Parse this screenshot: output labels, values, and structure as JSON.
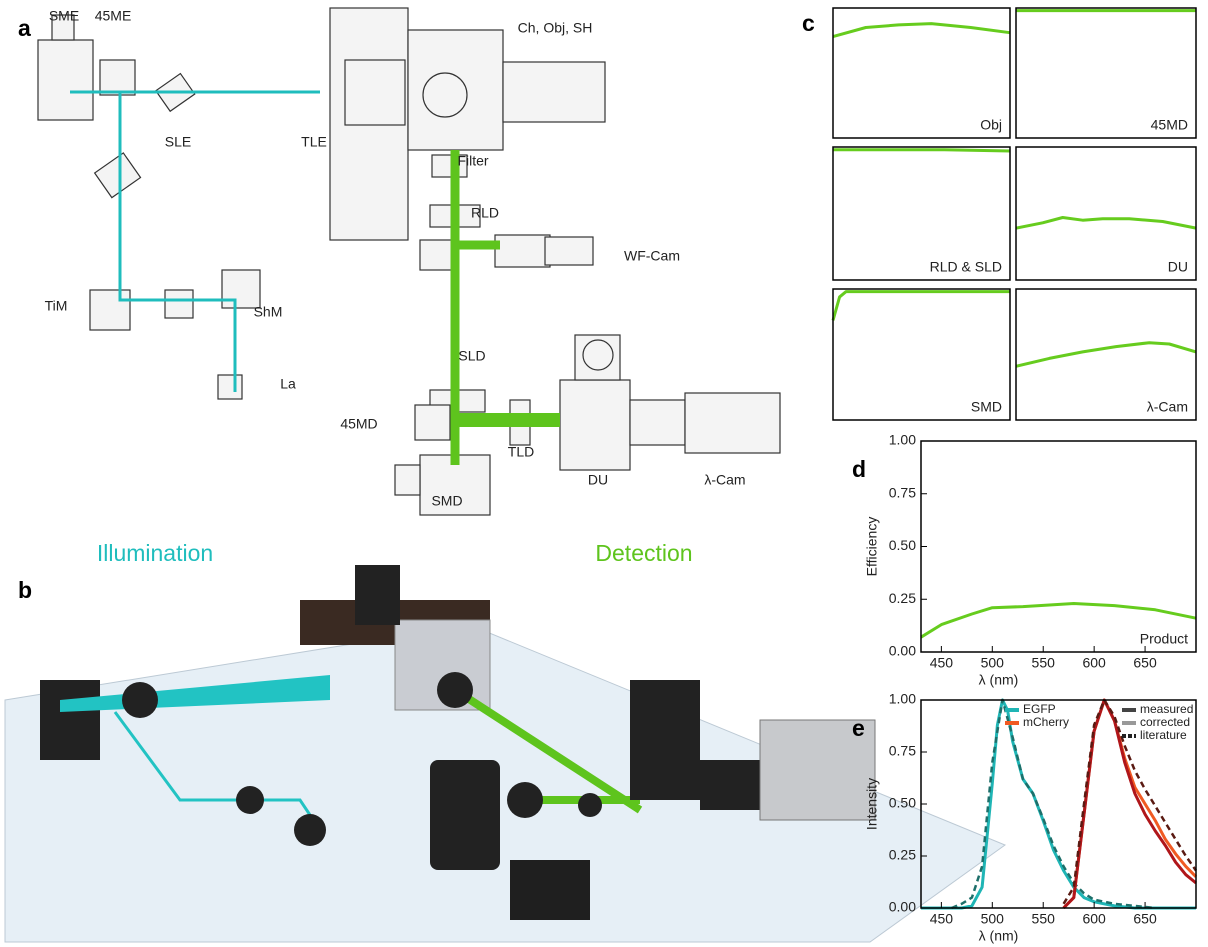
{
  "panel_labels": [
    "a",
    "b",
    "c",
    "d",
    "e"
  ],
  "diagram": {
    "labels": [
      "SME",
      "45ME",
      "SLE",
      "TLE",
      "Ch, Obj, SH",
      "Filter",
      "RLD",
      "WF-Cam",
      "TiM",
      "ShM",
      "La",
      "SLD",
      "45MD",
      "TLD",
      "DU",
      "λ-Cam",
      "SMD"
    ],
    "section_titles": [
      {
        "text": "Illumination",
        "color": "#1fbdbd"
      },
      {
        "text": "Detection",
        "color": "#5ec41d"
      }
    ]
  },
  "chart_data": [
    {
      "type": "line",
      "label": "Obj",
      "color": "#66cc1e",
      "x": [
        430,
        480,
        530,
        580,
        640,
        700
      ],
      "values": [
        0.78,
        0.85,
        0.87,
        0.88,
        0.85,
        0.81
      ],
      "xlim": [
        430,
        700
      ],
      "ylim": [
        0,
        1
      ]
    },
    {
      "type": "line",
      "label": "45MD",
      "color": "#66cc1e",
      "x": [
        430,
        500,
        600,
        700
      ],
      "values": [
        0.98,
        0.98,
        0.98,
        0.98
      ],
      "xlim": [
        430,
        700
      ],
      "ylim": [
        0,
        1
      ]
    },
    {
      "type": "line",
      "label": "RLD & SLD",
      "color": "#66cc1e",
      "x": [
        430,
        500,
        600,
        700
      ],
      "values": [
        0.98,
        0.98,
        0.98,
        0.97
      ],
      "xlim": [
        430,
        700
      ],
      "ylim": [
        0,
        1
      ]
    },
    {
      "type": "line",
      "label": "DU",
      "color": "#66cc1e",
      "x": [
        430,
        470,
        500,
        530,
        560,
        600,
        650,
        700
      ],
      "values": [
        0.39,
        0.43,
        0.47,
        0.45,
        0.46,
        0.46,
        0.44,
        0.39
      ],
      "xlim": [
        430,
        700
      ],
      "ylim": [
        0,
        1
      ]
    },
    {
      "type": "line",
      "label": "SMD",
      "color": "#66cc1e",
      "x": [
        430,
        440,
        450,
        500,
        600,
        700
      ],
      "values": [
        0.76,
        0.94,
        0.98,
        0.98,
        0.98,
        0.98
      ],
      "xlim": [
        430,
        700
      ],
      "ylim": [
        0,
        1
      ]
    },
    {
      "type": "line",
      "label": "λ-Cam",
      "color": "#66cc1e",
      "x": [
        430,
        480,
        530,
        580,
        630,
        660,
        700
      ],
      "values": [
        0.41,
        0.47,
        0.52,
        0.56,
        0.59,
        0.58,
        0.52
      ],
      "xlim": [
        430,
        700
      ],
      "ylim": [
        0,
        1
      ]
    },
    {
      "type": "line",
      "label": "Product",
      "color": "#66cc1e",
      "x": [
        430,
        450,
        480,
        500,
        530,
        580,
        620,
        660,
        700
      ],
      "values": [
        0.07,
        0.13,
        0.18,
        0.21,
        0.215,
        0.23,
        0.22,
        0.2,
        0.16
      ],
      "xlim": [
        430,
        700
      ],
      "ylim": [
        0,
        1
      ],
      "xticks": [
        450,
        500,
        550,
        600,
        650
      ],
      "yticks": [
        {
          "value": 0,
          "label": "0.00"
        },
        0.25,
        {
          "value": 0.5,
          "label": "0.50"
        },
        0.75,
        {
          "value": 1,
          "label": "1.00"
        }
      ],
      "y_label": "Efficiency",
      "x_label": "λ (nm)"
    },
    {
      "type": "line",
      "xlim": [
        430,
        700
      ],
      "ylim": [
        0,
        1
      ],
      "xticks": [
        450,
        500,
        550,
        600,
        650
      ],
      "yticks": [
        {
          "value": 0,
          "label": "0.00"
        },
        0.25,
        {
          "value": 0.5,
          "label": "0.50"
        },
        0.75,
        {
          "value": 1,
          "label": "1.00"
        }
      ],
      "y_label": "Intensity",
      "x_label": "λ (nm)",
      "series": [
        {
          "color": "#1fb5b5",
          "dash": false,
          "x": [
            430,
            470,
            480,
            490,
            500,
            505,
            510,
            515,
            520,
            530,
            540,
            550,
            560,
            570,
            580,
            590,
            600,
            620,
            640,
            700
          ],
          "values": [
            0,
            0,
            0.01,
            0.1,
            0.6,
            0.88,
            1,
            0.95,
            0.8,
            0.62,
            0.55,
            0.42,
            0.28,
            0.18,
            0.1,
            0.05,
            0.03,
            0.01,
            0,
            0
          ]
        },
        {
          "color": "#1d6f6a",
          "dash": true,
          "x": [
            460,
            470,
            480,
            490,
            500,
            510,
            520,
            530,
            540,
            550,
            560,
            570,
            580,
            590,
            600,
            620,
            640,
            660
          ],
          "values": [
            0,
            0.02,
            0.05,
            0.2,
            0.7,
            1,
            0.82,
            0.62,
            0.55,
            0.43,
            0.3,
            0.2,
            0.12,
            0.07,
            0.04,
            0.02,
            0.01,
            0
          ]
        },
        {
          "color": "#f05a23",
          "dash": false,
          "x": [
            570,
            580,
            590,
            600,
            610,
            620,
            630,
            640,
            650,
            660,
            670,
            680,
            690,
            700
          ],
          "values": [
            0,
            0.05,
            0.45,
            0.85,
            1,
            0.9,
            0.72,
            0.58,
            0.5,
            0.42,
            0.33,
            0.26,
            0.2,
            0.15
          ]
        },
        {
          "color": "#b0161a",
          "dash": false,
          "x": [
            570,
            580,
            590,
            600,
            610,
            620,
            630,
            640,
            650,
            660,
            670,
            680,
            690,
            700
          ],
          "values": [
            0,
            0.05,
            0.45,
            0.85,
            1,
            0.9,
            0.7,
            0.55,
            0.45,
            0.37,
            0.3,
            0.22,
            0.16,
            0.12
          ]
        },
        {
          "color": "#5a1a12",
          "dash": true,
          "x": [
            570,
            580,
            590,
            600,
            610,
            620,
            630,
            640,
            650,
            660,
            670,
            680,
            690,
            700
          ],
          "values": [
            0.02,
            0.1,
            0.5,
            0.88,
            1,
            0.92,
            0.78,
            0.66,
            0.57,
            0.49,
            0.41,
            0.33,
            0.25,
            0.18
          ]
        }
      ],
      "legend": [
        {
          "name": "EGFP",
          "color": "#1fb5b5"
        },
        {
          "name": "mCherry",
          "color": "#f05a23"
        }
      ],
      "style_legend": [
        {
          "name": "measured",
          "color": "#444",
          "dash": false
        },
        {
          "name": "corrected",
          "color": "#999",
          "dash": false
        },
        {
          "name": "literature",
          "color": "#222",
          "dash": true
        }
      ]
    }
  ]
}
